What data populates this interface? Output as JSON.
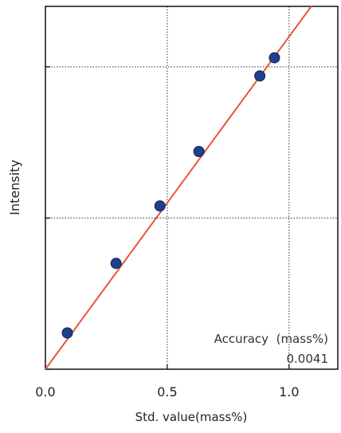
{
  "chart_data": {
    "type": "scatter",
    "title": "",
    "xlabel": "Std. value(mass%)",
    "ylabel": "Intensity",
    "xlim": [
      0.0,
      1.2
    ],
    "ylim": [
      0.0,
      1.2
    ],
    "x_ticks": [
      0.0,
      0.5,
      1.0
    ],
    "x_tick_labels": [
      "0.0",
      "0.5",
      "1.0"
    ],
    "y_ticks": [
      0.0,
      0.5,
      1.0
    ],
    "y_tick_labels_visible": false,
    "grid": true,
    "grid_style": "dotted",
    "series": [
      {
        "points": [
          {
            "x": 0.09,
            "y": 0.12
          },
          {
            "x": 0.29,
            "y": 0.35
          },
          {
            "x": 0.47,
            "y": 0.54
          },
          {
            "x": 0.63,
            "y": 0.72
          },
          {
            "x": 0.88,
            "y": 0.97
          },
          {
            "x": 0.94,
            "y": 1.03
          }
        ],
        "color": "#1f3f8f"
      }
    ],
    "fit_line": {
      "x": [
        0.0,
        1.2
      ],
      "y": [
        0.0,
        1.32
      ],
      "color": "#e8553a"
    },
    "annotations": {
      "accuracy_label": "Accuracy  (mass%)",
      "accuracy_value": "0.0041"
    }
  }
}
